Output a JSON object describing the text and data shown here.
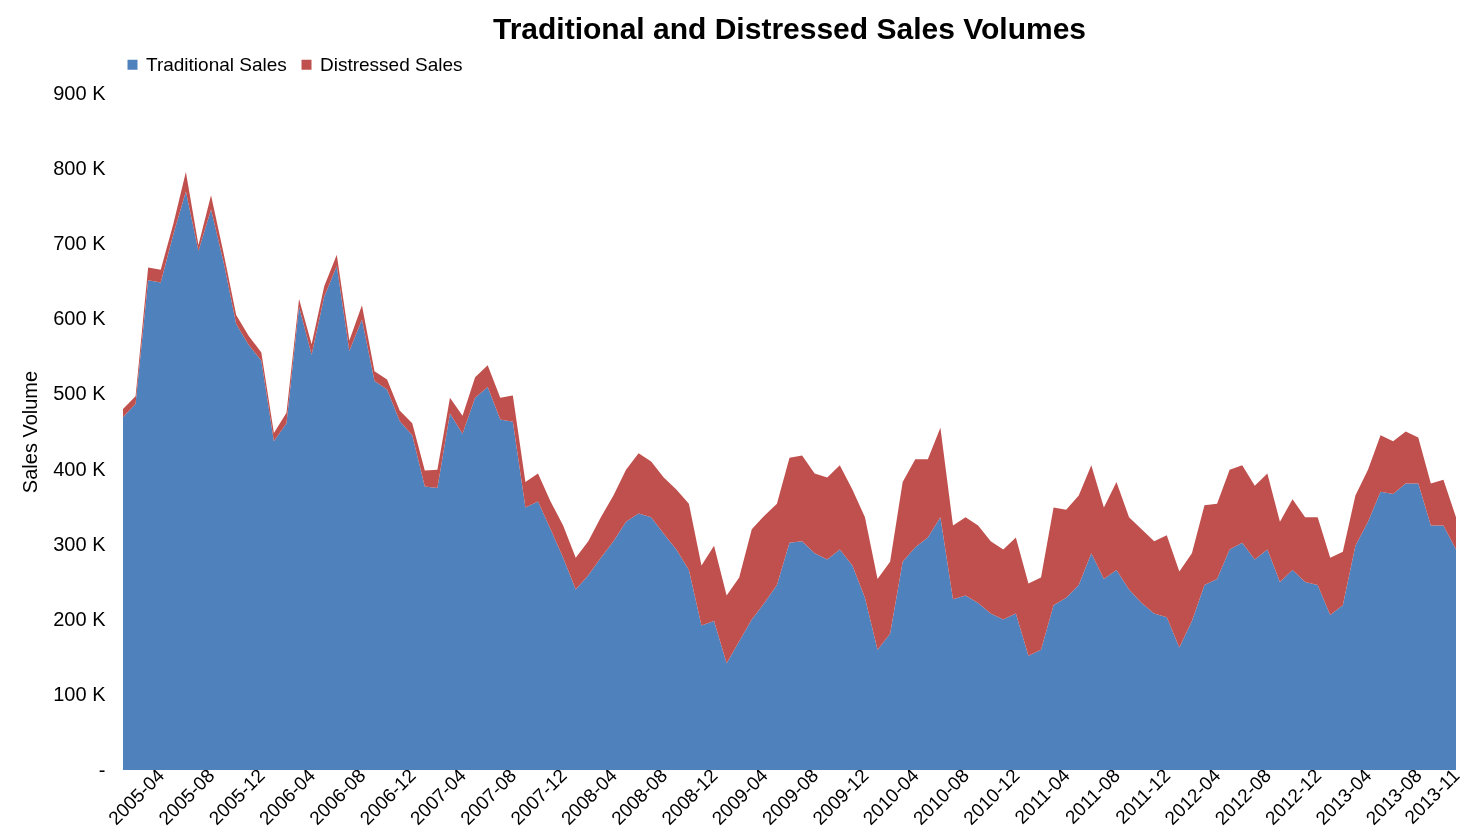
{
  "chart_data": {
    "type": "area",
    "title": "Traditional and Distressed Sales Volumes",
    "ylabel": "Sales Volume",
    "stacked": true,
    "legend": "top",
    "grid": false,
    "categories": [
      null,
      null,
      null,
      "2005-04",
      null,
      null,
      null,
      "2005-08",
      null,
      null,
      null,
      "2005-12",
      null,
      null,
      null,
      "2006-04",
      null,
      null,
      null,
      "2006-08",
      null,
      null,
      null,
      "2006-12",
      null,
      null,
      null,
      "2007-04",
      null,
      null,
      null,
      "2007-08",
      null,
      null,
      null,
      "2007-12",
      null,
      null,
      null,
      "2008-04",
      null,
      null,
      null,
      "2008-08",
      null,
      null,
      null,
      "2008-12",
      null,
      null,
      null,
      "2009-04",
      null,
      null,
      null,
      "2009-08",
      null,
      null,
      null,
      "2009-12",
      null,
      null,
      null,
      "2010-04",
      null,
      null,
      null,
      "2010-08",
      null,
      null,
      null,
      "2010-12",
      null,
      null,
      null,
      "2011-04",
      null,
      null,
      null,
      "2011-08",
      null,
      null,
      null,
      "2011-12",
      null,
      null,
      null,
      "2012-04",
      null,
      null,
      null,
      "2012-08",
      null,
      null,
      null,
      "2012-12",
      null,
      null,
      null,
      "2013-04",
      null,
      null,
      null,
      "2013-08",
      null,
      null,
      "2013-11"
    ],
    "ylim": [
      0,
      900000
    ],
    "yticks": [
      {
        "value": 0,
        "label": "-"
      },
      {
        "value": 100000,
        "label": "100 K"
      },
      {
        "value": 200000,
        "label": "200 K"
      },
      {
        "value": 300000,
        "label": "300 K"
      },
      {
        "value": 400000,
        "label": "400 K"
      },
      {
        "value": 500000,
        "label": "500 K"
      },
      {
        "value": 600000,
        "label": "600 K"
      },
      {
        "value": 700000,
        "label": "700 K"
      },
      {
        "value": 800000,
        "label": "800 K"
      },
      {
        "value": 900000,
        "label": "900 K"
      }
    ],
    "series": [
      {
        "name": "Traditional Sales",
        "color": "#4f81bd",
        "values": [
          469000,
          487000,
          651000,
          648000,
          712000,
          769000,
          690000,
          745000,
          675000,
          593000,
          565000,
          544000,
          437000,
          461000,
          616000,
          552000,
          629000,
          670000,
          557000,
          599000,
          517000,
          506000,
          464000,
          445000,
          377000,
          375000,
          474000,
          447000,
          495000,
          509000,
          466000,
          463000,
          349000,
          357000,
          320000,
          282000,
          240000,
          259000,
          282000,
          304000,
          330000,
          341000,
          336000,
          314000,
          293000,
          266000,
          192000,
          198000,
          142000,
          171000,
          200000,
          222000,
          246000,
          302000,
          304000,
          288000,
          280000,
          293000,
          272000,
          229000,
          160000,
          181000,
          277000,
          296000,
          309000,
          336000,
          227000,
          232000,
          222000,
          208000,
          200000,
          208000,
          152000,
          160000,
          219000,
          229000,
          246000,
          288000,
          254000,
          266000,
          240000,
          222000,
          208000,
          203000,
          163000,
          198000,
          246000,
          254000,
          293000,
          302000,
          280000,
          293000,
          250000,
          266000,
          250000,
          246000,
          206000,
          219000,
          298000,
          330000,
          370000,
          367000,
          381000,
          381000,
          325000,
          325000,
          293000
        ]
      },
      {
        "name": "Distressed Sales",
        "color": "#c0504d",
        "values": [
          11000,
          10000,
          17000,
          17000,
          14000,
          26000,
          8000,
          19000,
          12000,
          12000,
          12000,
          11000,
          11000,
          14000,
          10000,
          14000,
          14000,
          15000,
          14000,
          19000,
          13000,
          13000,
          14000,
          16000,
          21000,
          24000,
          21000,
          24000,
          27000,
          29000,
          29000,
          35000,
          34000,
          37000,
          37000,
          43000,
          42000,
          45000,
          54000,
          61000,
          69000,
          80000,
          74000,
          75000,
          80000,
          88000,
          80000,
          100000,
          90000,
          85000,
          120000,
          116000,
          108000,
          113000,
          114000,
          106000,
          109000,
          112000,
          101000,
          107000,
          94000,
          96000,
          106000,
          117000,
          104000,
          119000,
          98000,
          104000,
          103000,
          96000,
          93000,
          101000,
          96000,
          96000,
          130000,
          117000,
          119000,
          117000,
          95000,
          117000,
          96000,
          98000,
          96000,
          109000,
          101000,
          90000,
          106000,
          100000,
          106000,
          103000,
          98000,
          101000,
          80000,
          94000,
          86000,
          90000,
          76000,
          71000,
          67000,
          69000,
          75000,
          70000,
          69000,
          61000,
          56000,
          61000,
          43000
        ]
      }
    ]
  }
}
